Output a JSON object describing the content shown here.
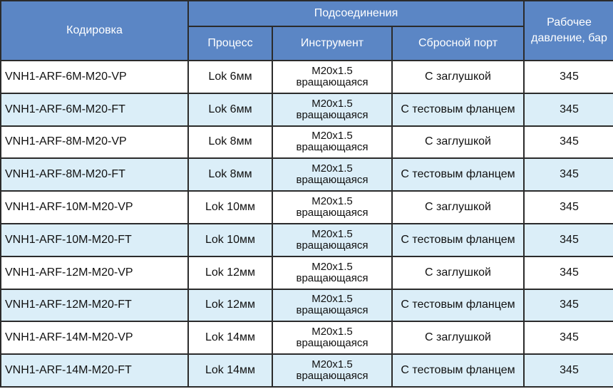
{
  "header": {
    "code": "Кодировка",
    "connections": "Подсоединения",
    "process": "Процесс",
    "instrument": "Инструмент",
    "vent": "Сбросной порт",
    "pressure": "Рабочее давление, бар"
  },
  "colors": {
    "header_bg": "#5b86c5",
    "alt_row_bg": "#dbeef8"
  },
  "rows": [
    {
      "code": "VNH1-ARF-6M-M20-VP",
      "process": "Lok 6мм",
      "inst1": "M20x1.5",
      "inst2": "вращающаяся",
      "vent": "С заглушкой",
      "pressure": "345"
    },
    {
      "code": "VNH1-ARF-6M-M20-FT",
      "process": "Lok 6мм",
      "inst1": "M20x1.5",
      "inst2": "вращающаяся",
      "vent": "С тестовым фланцем",
      "pressure": "345"
    },
    {
      "code": "VNH1-ARF-8M-M20-VP",
      "process": "Lok 8мм",
      "inst1": "M20x1.5",
      "inst2": "вращающаяся",
      "vent": "С заглушкой",
      "pressure": "345"
    },
    {
      "code": "VNH1-ARF-8M-M20-FT",
      "process": "Lok 8мм",
      "inst1": "M20x1.5",
      "inst2": "вращающаяся",
      "vent": "С тестовым фланцем",
      "pressure": "345"
    },
    {
      "code": "VNH1-ARF-10M-M20-VP",
      "process": "Lok 10мм",
      "inst1": "M20x1.5",
      "inst2": "вращающаяся",
      "vent": "С заглушкой",
      "pressure": "345"
    },
    {
      "code": "VNH1-ARF-10M-M20-FT",
      "process": "Lok 10мм",
      "inst1": "M20x1.5",
      "inst2": "вращающаяся",
      "vent": "С тестовым фланцем",
      "pressure": "345"
    },
    {
      "code": "VNH1-ARF-12M-M20-VP",
      "process": "Lok 12мм",
      "inst1": "M20x1.5",
      "inst2": "вращающаяся",
      "vent": "С заглушкой",
      "pressure": "345"
    },
    {
      "code": "VNH1-ARF-12M-M20-FT",
      "process": "Lok 12мм",
      "inst1": "M20x1.5",
      "inst2": "вращающаяся",
      "vent": "С тестовым фланцем",
      "pressure": "345"
    },
    {
      "code": "VNH1-ARF-14M-M20-VP",
      "process": "Lok 14мм",
      "inst1": "M20x1.5",
      "inst2": "вращающаяся",
      "vent": "С заглушкой",
      "pressure": "345"
    },
    {
      "code": "VNH1-ARF-14M-M20-FT",
      "process": "Lok 14мм",
      "inst1": "M20x1.5",
      "inst2": "вращающаяся",
      "vent": "С тестовым фланцем",
      "pressure": "345"
    }
  ]
}
